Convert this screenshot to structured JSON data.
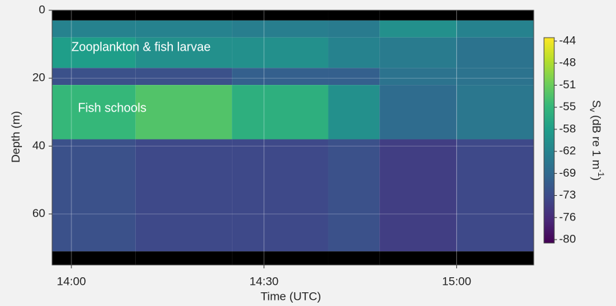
{
  "chart_data": {
    "type": "echogram",
    "xlabel": "Time (UTC)",
    "ylabel": "Depth (m)",
    "xlim": [
      "13:57",
      "15:12"
    ],
    "xticks": [
      "14:00",
      "14:30",
      "15:00"
    ],
    "ylim": [
      0,
      75
    ],
    "y_inverted": true,
    "yticks": [
      0,
      20,
      40,
      60
    ],
    "grid": true,
    "time_edges": [
      "13:57",
      "14:10",
      "14:25",
      "14:40",
      "14:48",
      "15:00",
      "15:12"
    ],
    "depth_edges": [
      0,
      3,
      8,
      17,
      22,
      38,
      71,
      75
    ],
    "z": [
      [
        null,
        null,
        null,
        null,
        null,
        null
      ],
      [
        -62,
        -62,
        -63,
        -64,
        -60,
        -62
      ],
      [
        -58,
        -60,
        -60,
        -62,
        -64,
        -66
      ],
      [
        -72,
        -72,
        -70,
        -70,
        -66,
        -66
      ],
      [
        -55,
        -53,
        -56,
        -60,
        -68,
        -65
      ],
      [
        -72,
        -73,
        -73,
        -72,
        -74,
        -73
      ],
      [
        null,
        null,
        null,
        null,
        null,
        null
      ]
    ],
    "null_color": "#000000",
    "cticks": [
      -44,
      -48,
      -51,
      -55,
      -58,
      -62,
      -69,
      -73,
      -76,
      -80
    ],
    "colormap": [
      "#fde725",
      "#b5de2b",
      "#6ece58",
      "#35b779",
      "#1f9e89",
      "#26828e",
      "#31688e",
      "#3e4989",
      "#482878",
      "#440154"
    ],
    "colorbar_label": {
      "symbol": "S",
      "subscript": "v",
      "unit": " (dB re 1 m",
      "exponent": "-1",
      "close": ")"
    },
    "annotations": [
      {
        "text": "Zooplankton & fish larvae",
        "time": "14:00",
        "depth": 11
      },
      {
        "text": "Fish schools",
        "time": "14:01",
        "depth": 29
      }
    ]
  }
}
